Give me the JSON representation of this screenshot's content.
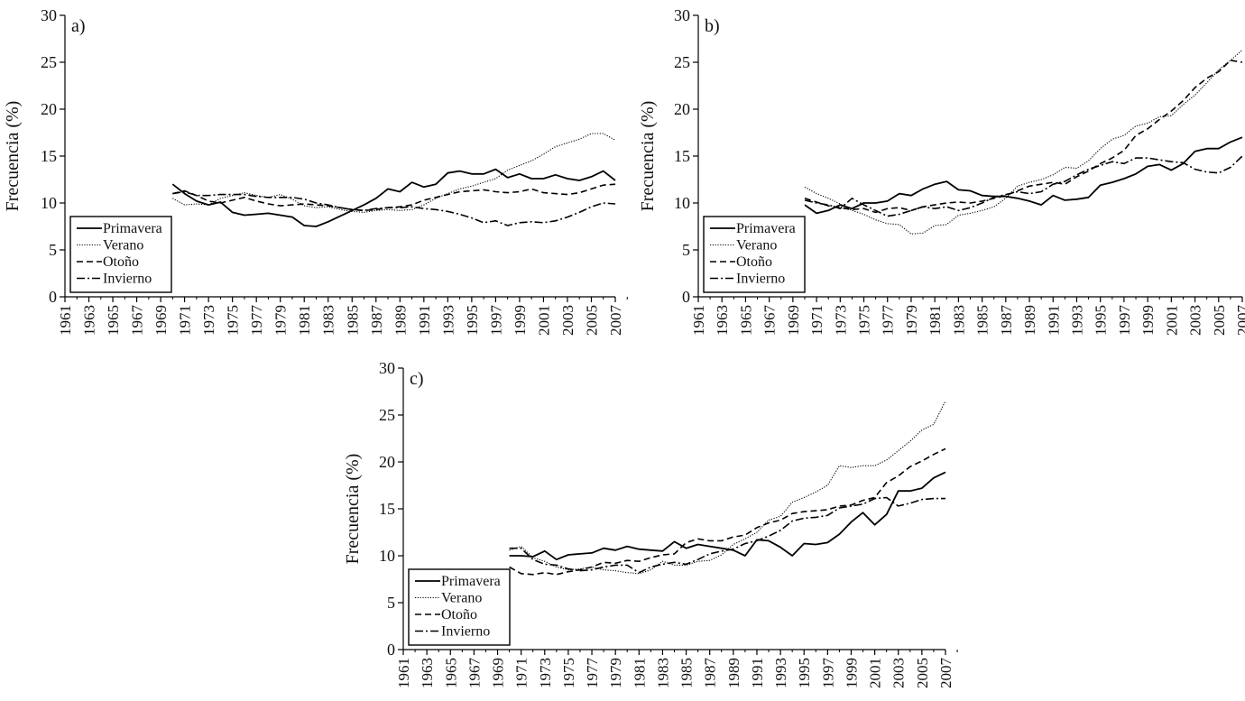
{
  "chart_data": [
    {
      "type": "line",
      "panel_label": "a)",
      "ylabel": "Frecuencia (%)",
      "ylim": [
        0,
        30
      ],
      "yticks": [
        0,
        5,
        10,
        15,
        20,
        25,
        30
      ],
      "xlim": [
        1961,
        2007
      ],
      "xticks": [
        "1961",
        "1963",
        "1965",
        "1967",
        "1969",
        "1971",
        "1973",
        "1975",
        "1977",
        "1979",
        "1981",
        "1983",
        "1985",
        "1987",
        "1989",
        "1991",
        "1993",
        "1995",
        "1997",
        "1999",
        "2001",
        "2003",
        "2005",
        "2007"
      ],
      "legend_position": "bottom-left",
      "x": [
        1970,
        1971,
        1972,
        1973,
        1974,
        1975,
        1976,
        1977,
        1978,
        1979,
        1980,
        1981,
        1982,
        1983,
        1984,
        1985,
        1986,
        1987,
        1988,
        1989,
        1990,
        1991,
        1992,
        1993,
        1994,
        1995,
        1996,
        1997,
        1998,
        1999,
        2000,
        2001,
        2002,
        2003,
        2004,
        2005,
        2006,
        2007
      ],
      "series": [
        {
          "name": "Primavera",
          "style": "solid",
          "values": [
            12.0,
            11.0,
            10.2,
            9.8,
            10.1,
            9.0,
            8.7,
            8.8,
            8.9,
            8.7,
            8.5,
            7.6,
            7.5,
            8.0,
            8.6,
            9.2,
            9.8,
            10.5,
            11.5,
            11.2,
            12.2,
            11.7,
            12.0,
            13.2,
            13.4,
            13.1,
            13.1,
            13.6,
            12.7,
            13.1,
            12.6,
            12.6,
            13.0,
            12.6,
            12.4,
            12.8,
            13.4,
            12.4
          ]
        },
        {
          "name": "Verano",
          "style": "dotted",
          "values": [
            10.5,
            9.8,
            9.9,
            9.8,
            10.5,
            10.8,
            11.1,
            10.8,
            10.6,
            10.9,
            10.4,
            9.7,
            9.5,
            9.6,
            9.3,
            9.1,
            9.0,
            9.2,
            9.3,
            9.2,
            9.3,
            9.8,
            10.5,
            11.0,
            11.5,
            11.8,
            12.2,
            12.6,
            13.5,
            14.0,
            14.5,
            15.2,
            16.0,
            16.4,
            16.8,
            17.4,
            17.4,
            16.7
          ]
        },
        {
          "name": "Otoño",
          "style": "dashed",
          "values": [
            11.0,
            11.3,
            10.8,
            10.2,
            10.0,
            10.3,
            10.6,
            10.2,
            9.9,
            9.7,
            9.8,
            9.9,
            9.8,
            9.7,
            9.5,
            9.3,
            9.2,
            9.3,
            9.5,
            9.6,
            9.8,
            10.3,
            10.6,
            10.9,
            11.2,
            11.3,
            11.4,
            11.2,
            11.1,
            11.2,
            11.5,
            11.1,
            11.0,
            10.9,
            11.1,
            11.5,
            11.9,
            12.0
          ]
        },
        {
          "name": "Invierno",
          "style": "dashdot",
          "values": [
            11.0,
            11.2,
            10.8,
            10.8,
            10.9,
            10.9,
            10.9,
            10.7,
            10.6,
            10.6,
            10.6,
            10.4,
            10.0,
            9.8,
            9.5,
            9.3,
            9.2,
            9.4,
            9.5,
            9.5,
            9.6,
            9.4,
            9.3,
            9.1,
            8.8,
            8.4,
            7.9,
            8.1,
            7.6,
            7.9,
            8.0,
            7.9,
            8.1,
            8.5,
            9.0,
            9.6,
            10.0,
            9.9
          ]
        }
      ]
    },
    {
      "type": "line",
      "panel_label": "b)",
      "ylabel": "Frecuencia (%)",
      "ylim": [
        0,
        30
      ],
      "yticks": [
        0,
        5,
        10,
        15,
        20,
        25,
        30
      ],
      "xlim": [
        1961,
        2007
      ],
      "xticks": [
        "1961",
        "1963",
        "1965",
        "1967",
        "1969",
        "1971",
        "1973",
        "1975",
        "1977",
        "1979",
        "1981",
        "1983",
        "1985",
        "1987",
        "1989",
        "1991",
        "1993",
        "1995",
        "1997",
        "1999",
        "2001",
        "2003",
        "2005",
        "2007"
      ],
      "legend_position": "bottom-left",
      "x": [
        1970,
        1971,
        1972,
        1973,
        1974,
        1975,
        1976,
        1977,
        1978,
        1979,
        1980,
        1981,
        1982,
        1983,
        1984,
        1985,
        1986,
        1987,
        1988,
        1989,
        1990,
        1991,
        1992,
        1993,
        1994,
        1995,
        1996,
        1997,
        1998,
        1999,
        2000,
        2001,
        2002,
        2003,
        2004,
        2005,
        2006,
        2007
      ],
      "series": [
        {
          "name": "Primavera",
          "style": "solid",
          "values": [
            9.8,
            8.9,
            9.2,
            9.8,
            9.4,
            10.0,
            10.0,
            10.2,
            11.0,
            10.8,
            11.5,
            12.0,
            12.3,
            11.4,
            11.3,
            10.8,
            10.7,
            10.7,
            10.5,
            10.2,
            9.8,
            10.8,
            10.3,
            10.4,
            10.6,
            11.9,
            12.2,
            12.6,
            13.1,
            13.9,
            14.1,
            13.5,
            14.2,
            15.5,
            15.8,
            15.8,
            16.5,
            17.0
          ]
        },
        {
          "name": "Verano",
          "style": "dotted",
          "values": [
            11.7,
            11.0,
            10.5,
            9.9,
            9.2,
            8.8,
            8.2,
            7.8,
            7.7,
            6.7,
            6.8,
            7.6,
            7.7,
            8.7,
            8.9,
            9.2,
            9.6,
            10.5,
            11.8,
            12.2,
            12.5,
            13.0,
            13.8,
            13.7,
            14.5,
            15.8,
            16.8,
            17.2,
            18.2,
            18.5,
            19.2,
            19.3,
            20.5,
            21.5,
            22.8,
            24.2,
            25.2,
            26.3
          ]
        },
        {
          "name": "Otoño",
          "style": "dashed",
          "values": [
            10.5,
            10.1,
            9.7,
            9.5,
            9.3,
            9.4,
            9.0,
            9.4,
            9.5,
            9.2,
            9.6,
            9.8,
            10.0,
            10.1,
            10.0,
            10.2,
            10.5,
            10.8,
            11.3,
            11.8,
            12.0,
            12.2,
            12.0,
            12.8,
            13.4,
            14.2,
            14.8,
            15.6,
            17.2,
            17.9,
            18.9,
            19.8,
            20.9,
            22.3,
            23.3,
            24.0,
            25.2,
            25.0
          ]
        },
        {
          "name": "Invierno",
          "style": "dashdot",
          "values": [
            10.3,
            10.0,
            9.8,
            9.4,
            10.5,
            9.8,
            9.2,
            8.6,
            8.8,
            9.2,
            9.6,
            9.4,
            9.6,
            9.2,
            9.5,
            10.0,
            10.6,
            10.9,
            11.2,
            11.0,
            11.2,
            12.0,
            12.3,
            13.0,
            13.6,
            14.0,
            14.4,
            14.2,
            14.8,
            14.8,
            14.6,
            14.4,
            14.3,
            13.6,
            13.3,
            13.2,
            13.8,
            15.0
          ]
        }
      ]
    },
    {
      "type": "line",
      "panel_label": "c)",
      "ylabel": "Frecuencia (%)",
      "ylim": [
        0,
        30
      ],
      "yticks": [
        0,
        5,
        10,
        15,
        20,
        25,
        30
      ],
      "xlim": [
        1961,
        2007
      ],
      "xticks": [
        "1961",
        "1963",
        "1965",
        "1967",
        "1969",
        "1971",
        "1973",
        "1975",
        "1977",
        "1979",
        "1981",
        "1983",
        "1985",
        "1987",
        "1989",
        "1991",
        "1993",
        "1995",
        "1997",
        "1999",
        "2001",
        "2003",
        "2005",
        "2007"
      ],
      "legend_position": "bottom-left",
      "x": [
        1970,
        1971,
        1972,
        1973,
        1974,
        1975,
        1976,
        1977,
        1978,
        1979,
        1980,
        1981,
        1982,
        1983,
        1984,
        1985,
        1986,
        1987,
        1988,
        1989,
        1990,
        1991,
        1992,
        1993,
        1994,
        1995,
        1996,
        1997,
        1998,
        1999,
        2000,
        2001,
        2002,
        2003,
        2004,
        2005,
        2006,
        2007
      ],
      "series": [
        {
          "name": "Primavera",
          "style": "solid",
          "values": [
            10.0,
            10.0,
            9.9,
            10.5,
            9.6,
            10.1,
            10.2,
            10.3,
            10.8,
            10.6,
            11.0,
            10.7,
            10.6,
            10.5,
            11.5,
            10.8,
            11.2,
            11.0,
            10.8,
            10.6,
            10.0,
            11.7,
            11.6,
            10.9,
            10.0,
            11.3,
            11.2,
            11.4,
            12.3,
            13.6,
            14.6,
            13.3,
            14.4,
            16.9,
            16.9,
            17.2,
            18.3,
            18.9
          ]
        },
        {
          "name": "Verano",
          "style": "dotted",
          "values": [
            10.6,
            11.0,
            9.8,
            9.4,
            8.8,
            8.5,
            8.6,
            8.8,
            8.5,
            8.4,
            8.2,
            8.1,
            8.5,
            9.4,
            9.0,
            9.0,
            9.4,
            9.5,
            10.1,
            11.2,
            11.8,
            12.5,
            13.8,
            14.2,
            15.7,
            16.2,
            16.8,
            17.5,
            19.6,
            19.4,
            19.6,
            19.6,
            20.2,
            21.2,
            22.2,
            23.4,
            24.0,
            26.5
          ]
        },
        {
          "name": "Otoño",
          "style": "dashed",
          "values": [
            8.8,
            8.1,
            8.0,
            8.2,
            8.0,
            8.3,
            8.5,
            8.8,
            9.3,
            9.2,
            9.5,
            9.4,
            9.8,
            10.1,
            10.2,
            11.4,
            11.8,
            11.6,
            11.6,
            12.0,
            12.2,
            13.0,
            13.5,
            13.8,
            14.5,
            14.7,
            14.8,
            14.9,
            15.3,
            15.4,
            15.9,
            16.2,
            17.8,
            18.5,
            19.5,
            20.1,
            20.8,
            21.4
          ]
        },
        {
          "name": "Invierno",
          "style": "dashdot",
          "values": [
            10.8,
            10.8,
            9.6,
            9.1,
            9.0,
            8.6,
            8.4,
            8.5,
            8.8,
            9.0,
            9.0,
            8.2,
            8.8,
            9.1,
            9.3,
            9.1,
            9.6,
            10.2,
            10.5,
            10.7,
            11.3,
            11.6,
            12.1,
            12.7,
            13.7,
            14.0,
            14.1,
            14.3,
            15.1,
            15.3,
            15.5,
            16.1,
            16.2,
            15.3,
            15.6,
            16.0,
            16.1,
            16.1
          ]
        }
      ]
    }
  ]
}
